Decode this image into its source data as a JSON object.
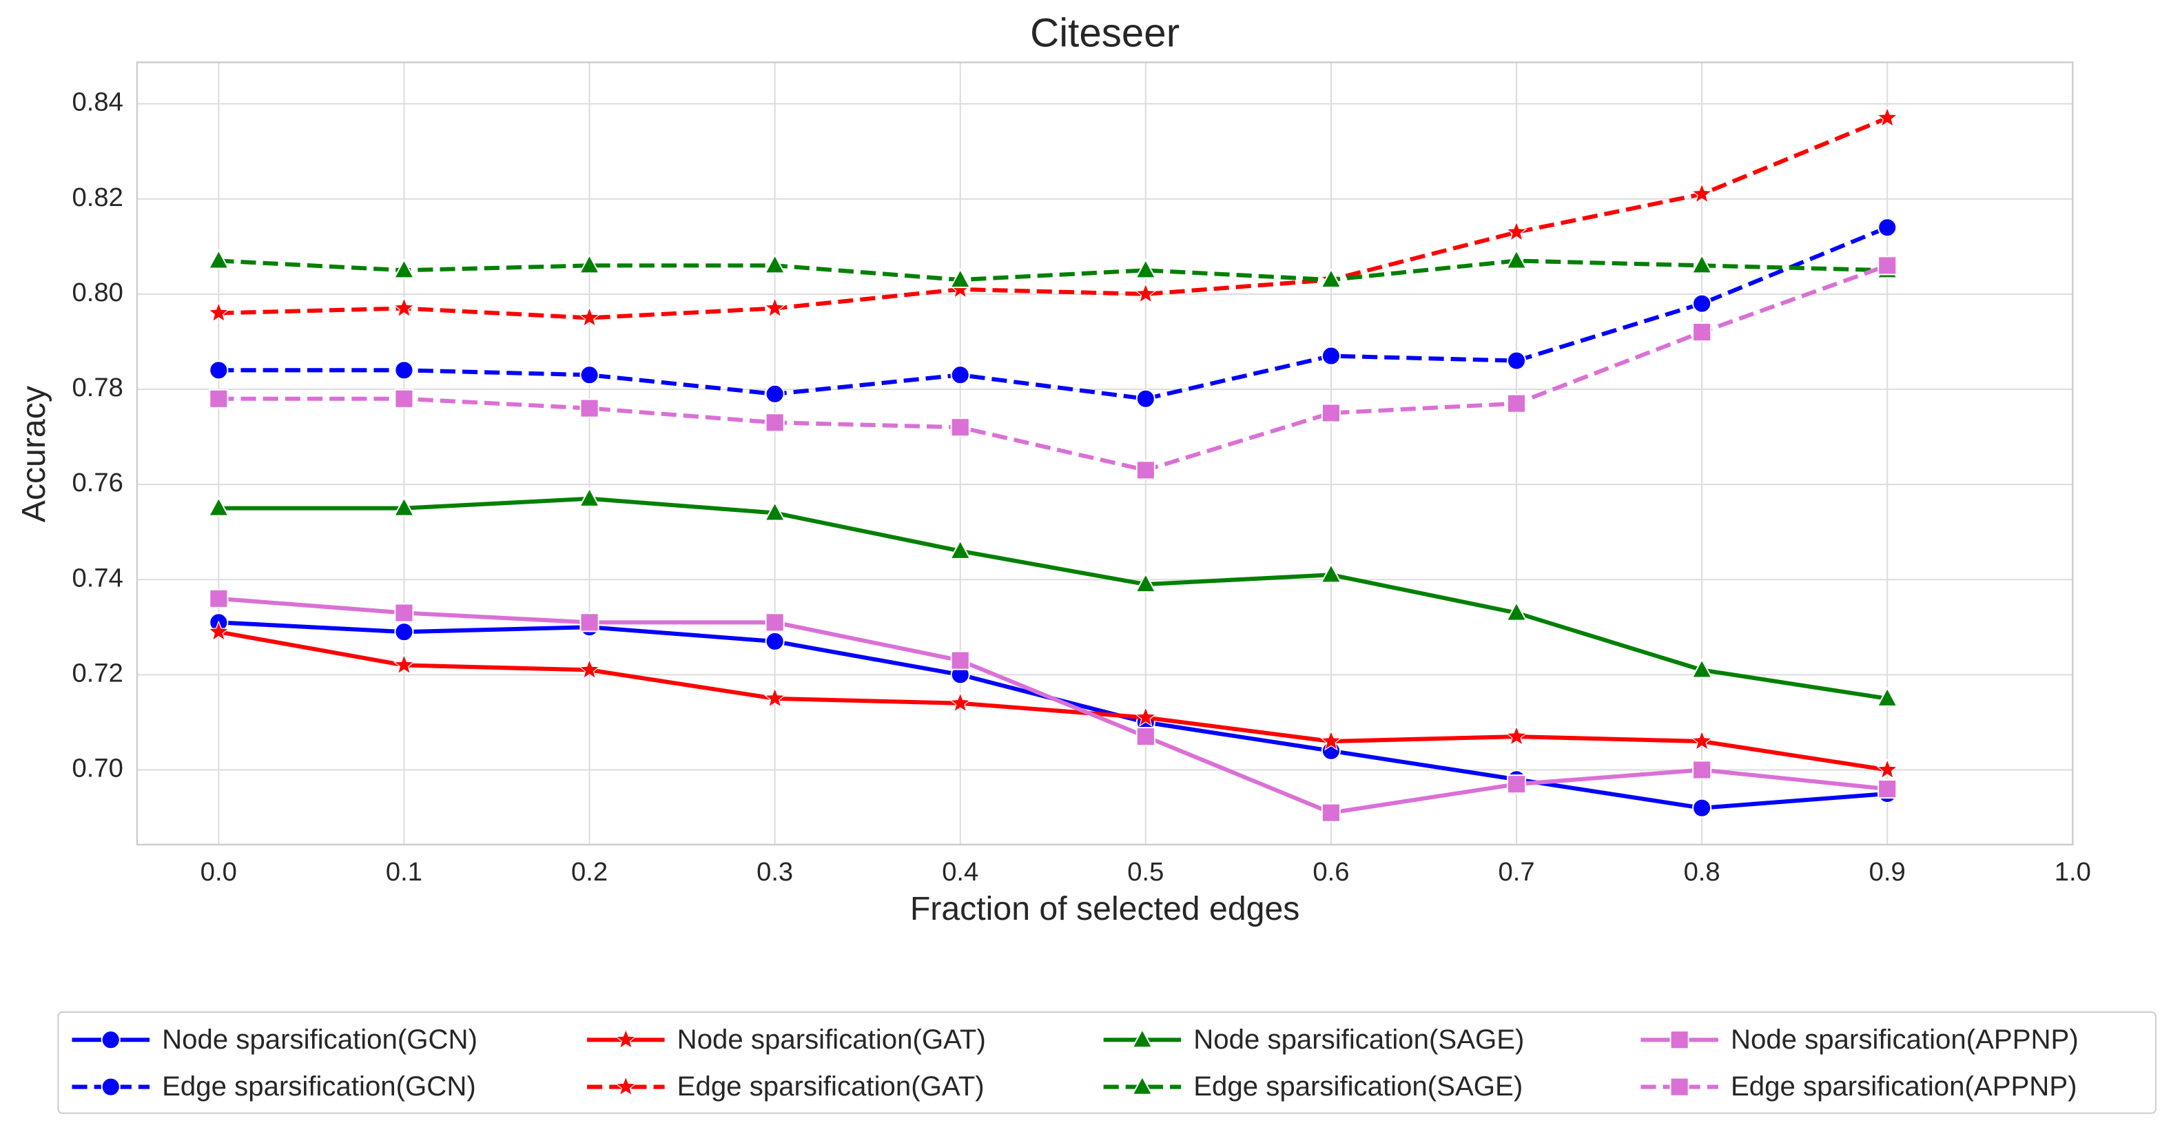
{
  "chart_data": {
    "type": "line",
    "title": "Citeseer",
    "x_label": "Fraction of selected edges",
    "y_label": "Accuracy",
    "x": [
      0,
      0.1,
      0.2,
      0.3,
      0.4,
      0.5,
      0.6,
      0.7,
      0.8,
      0.9
    ],
    "xlim": [
      -0.044,
      1.0
    ],
    "xticks": [
      {
        "value": 0,
        "label": "0.0"
      },
      0.1,
      0.2,
      0.3,
      0.4,
      0.5,
      0.6,
      0.7,
      0.8,
      0.9,
      {
        "value": 1,
        "label": "1.0"
      }
    ],
    "ylim": [
      0.6843,
      0.8487
    ],
    "yticks": [
      {
        "value": 0.7,
        "label": "0.70"
      },
      0.72,
      0.74,
      0.76,
      0.78,
      {
        "value": 0.8,
        "label": "0.80"
      },
      0.82,
      0.84
    ],
    "grid": true,
    "legend": "bottom",
    "series": [
      {
        "name": "Node sparsification(GCN)",
        "color": "#0000ff",
        "marker": "circle",
        "dashed": false,
        "values": [
          0.731,
          0.729,
          0.73,
          0.727,
          0.72,
          0.71,
          0.704,
          0.698,
          0.692,
          0.695
        ]
      },
      {
        "name": "Edge sparsification(GCN)",
        "color": "#0000ff",
        "marker": "circle",
        "dashed": true,
        "values": [
          0.784,
          0.784,
          0.783,
          0.779,
          0.783,
          0.778,
          0.787,
          0.786,
          0.798,
          0.814
        ]
      },
      {
        "name": "Node sparsification(GAT)",
        "color": "#ff0000",
        "marker": "star",
        "dashed": false,
        "values": [
          0.729,
          0.722,
          0.721,
          0.715,
          0.714,
          0.711,
          0.706,
          0.707,
          0.706,
          0.7
        ]
      },
      {
        "name": "Edge sparsification(GAT)",
        "color": "#ff0000",
        "marker": "star",
        "dashed": true,
        "values": [
          0.796,
          0.797,
          0.795,
          0.797,
          0.801,
          0.8,
          0.803,
          0.813,
          0.821,
          0.837
        ]
      },
      {
        "name": "Node sparsification(SAGE)",
        "color": "#008000",
        "marker": "triangle",
        "dashed": false,
        "values": [
          0.755,
          0.755,
          0.757,
          0.754,
          0.746,
          0.739,
          0.741,
          0.733,
          0.721,
          0.715
        ]
      },
      {
        "name": "Edge sparsification(SAGE)",
        "color": "#008000",
        "marker": "triangle",
        "dashed": true,
        "values": [
          0.807,
          0.805,
          0.806,
          0.806,
          0.803,
          0.805,
          0.803,
          0.807,
          0.806,
          0.805
        ]
      },
      {
        "name": "Node sparsification(APPNP)",
        "color": "#da70d6",
        "marker": "square",
        "dashed": false,
        "values": [
          0.736,
          0.733,
          0.731,
          0.731,
          0.723,
          0.707,
          0.691,
          0.697,
          0.7,
          0.696
        ]
      },
      {
        "name": "Edge sparsification(APPNP)",
        "color": "#da70d6",
        "marker": "square",
        "dashed": true,
        "values": [
          0.778,
          0.778,
          0.776,
          0.773,
          0.772,
          0.763,
          0.775,
          0.777,
          0.792,
          0.806
        ]
      }
    ]
  }
}
